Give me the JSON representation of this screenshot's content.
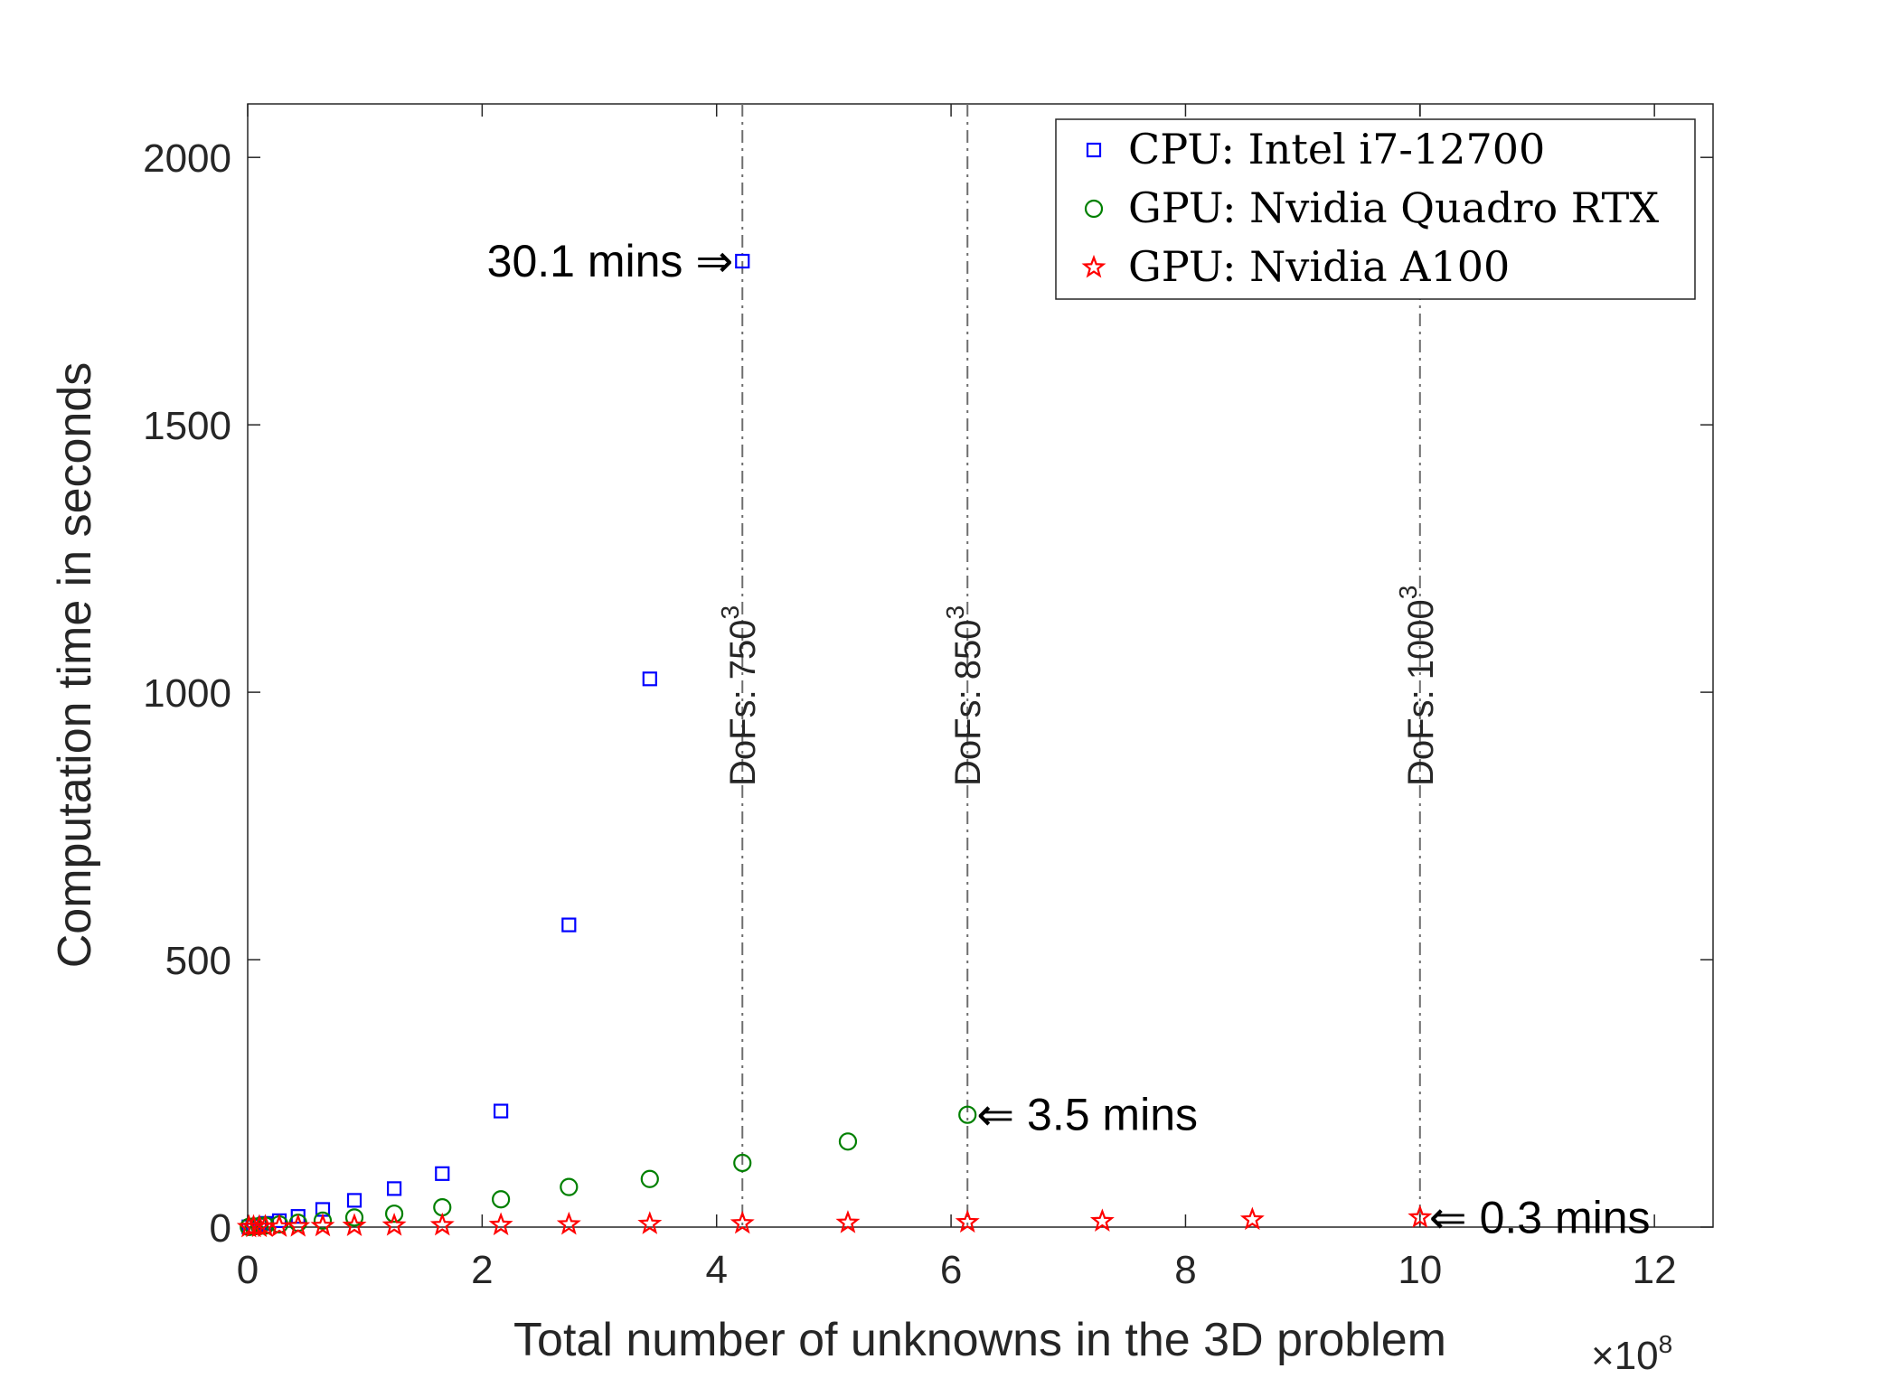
{
  "chart_data": {
    "type": "scatter",
    "xlabel": "Total number of unknowns in the 3D problem",
    "ylabel": "Computation time in seconds",
    "x_multiplier": {
      "base": "×10",
      "exponent": "8"
    },
    "xlim": [
      0,
      12.5
    ],
    "ylim": [
      0,
      2100
    ],
    "xticks": [
      0,
      2,
      4,
      6,
      8,
      10,
      12
    ],
    "yticks": [
      0,
      500,
      1000,
      1500,
      2000
    ],
    "grid": false,
    "legend_position": "top-right",
    "series": [
      {
        "name": "CPU: Intel i7-12700",
        "marker": "square",
        "color": "#0000ff",
        "x": [
          0.01,
          0.05,
          0.1,
          0.15,
          0.27,
          0.43,
          0.64,
          0.91,
          1.25,
          1.66,
          2.16,
          2.74,
          3.43,
          4.22
        ],
        "y": [
          0.5,
          2,
          4,
          7,
          12,
          20,
          33,
          50,
          72,
          100,
          217,
          565,
          1025,
          1806
        ]
      },
      {
        "name": "GPU: Nvidia Quadro RTX",
        "marker": "circle",
        "color": "#008000",
        "x": [
          0.01,
          0.05,
          0.1,
          0.15,
          0.27,
          0.43,
          0.64,
          0.91,
          1.25,
          1.66,
          2.16,
          2.74,
          3.43,
          4.22,
          5.12,
          6.14
        ],
        "y": [
          0.3,
          1,
          2,
          3,
          5,
          8,
          12,
          18,
          25,
          37,
          52,
          75,
          90,
          120,
          160,
          210
        ]
      },
      {
        "name": "GPU: Nvidia A100",
        "marker": "star",
        "color": "#ff0000",
        "x": [
          0.01,
          0.05,
          0.1,
          0.15,
          0.27,
          0.43,
          0.64,
          0.91,
          1.25,
          1.66,
          2.16,
          2.74,
          3.43,
          4.22,
          5.12,
          6.14,
          7.29,
          8.57,
          10.0
        ],
        "y": [
          0.1,
          0.3,
          0.5,
          0.8,
          1,
          1.5,
          2,
          2.5,
          3,
          3.5,
          4,
          5,
          6,
          7,
          8,
          9,
          11,
          14,
          18
        ]
      }
    ],
    "vertical_lines": [
      {
        "x": 4.22,
        "label": "DoFs: 750",
        "exp": "3"
      },
      {
        "x": 6.14,
        "label": "DoFs: 850",
        "exp": "3"
      },
      {
        "x": 10.0,
        "label": "DoFs: 1000",
        "exp": "3"
      }
    ],
    "annotations": [
      {
        "text": "30.1 mins",
        "arrow": "⇒",
        "x": 4.22,
        "y": 1806,
        "side": "left"
      },
      {
        "text": "3.5 mins",
        "arrow": "⇐",
        "x": 6.14,
        "y": 210,
        "side": "right"
      },
      {
        "text": "0.3 mins",
        "arrow": "⇐",
        "x": 10.0,
        "y": 18,
        "side": "right"
      }
    ]
  }
}
